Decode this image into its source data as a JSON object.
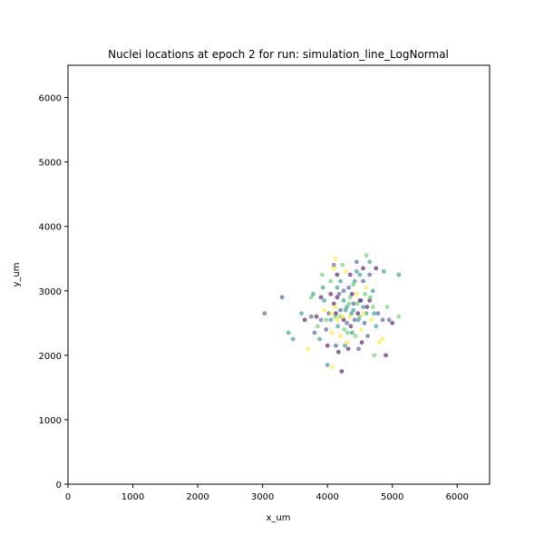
{
  "chart_data": {
    "type": "scatter",
    "title": "Nuclei locations at epoch 2 for run: simulation_line_LogNormal",
    "xlabel": "x_um",
    "ylabel": "y_um",
    "xlim": [
      0,
      6500
    ],
    "ylim": [
      0,
      6500
    ],
    "xticks": [
      0,
      1000,
      2000,
      3000,
      4000,
      5000,
      6000
    ],
    "yticks": [
      0,
      1000,
      2000,
      3000,
      4000,
      5000,
      6000
    ],
    "grid": false,
    "colormap": [
      "#440154",
      "#3b528b",
      "#21918c",
      "#5ec962",
      "#fde725"
    ],
    "point_alpha": 0.6,
    "points": [
      [
        3030,
        2650,
        1
      ],
      [
        3300,
        2900,
        1
      ],
      [
        3400,
        2350,
        2
      ],
      [
        3470,
        2250,
        2
      ],
      [
        3600,
        2650,
        2
      ],
      [
        3650,
        2550,
        0
      ],
      [
        3700,
        2100,
        4
      ],
      [
        3750,
        2600,
        1
      ],
      [
        3780,
        2950,
        2
      ],
      [
        3800,
        2350,
        1
      ],
      [
        3830,
        2600,
        0
      ],
      [
        3850,
        2450,
        3
      ],
      [
        3880,
        2250,
        2
      ],
      [
        3900,
        2900,
        0
      ],
      [
        3900,
        2550,
        1
      ],
      [
        3920,
        3250,
        3
      ],
      [
        3930,
        3050,
        2
      ],
      [
        3950,
        2700,
        4
      ],
      [
        3980,
        2400,
        1
      ],
      [
        4000,
        2150,
        0
      ],
      [
        4000,
        1850,
        2
      ],
      [
        4020,
        2650,
        1
      ],
      [
        4050,
        3150,
        3
      ],
      [
        4050,
        2950,
        0
      ],
      [
        4050,
        2550,
        2
      ],
      [
        4070,
        2350,
        4
      ],
      [
        4080,
        1820,
        4
      ],
      [
        4100,
        3400,
        1
      ],
      [
        4100,
        3350,
        4
      ],
      [
        4100,
        2800,
        0
      ],
      [
        4120,
        3500,
        4
      ],
      [
        4120,
        2600,
        3
      ],
      [
        4130,
        2150,
        1
      ],
      [
        4150,
        3250,
        0
      ],
      [
        4150,
        3050,
        2
      ],
      [
        4150,
        2900,
        0
      ],
      [
        4150,
        2550,
        4
      ],
      [
        4160,
        2450,
        2
      ],
      [
        4170,
        2050,
        0
      ],
      [
        4200,
        3150,
        2
      ],
      [
        4200,
        2700,
        1
      ],
      [
        4200,
        2600,
        3
      ],
      [
        4200,
        2300,
        4
      ],
      [
        4220,
        1750,
        0
      ],
      [
        4230,
        3400,
        3
      ],
      [
        4250,
        3000,
        1
      ],
      [
        4250,
        2850,
        2
      ],
      [
        4250,
        2550,
        0
      ],
      [
        4260,
        2400,
        3
      ],
      [
        4270,
        2150,
        2
      ],
      [
        4280,
        3300,
        4
      ],
      [
        4300,
        2750,
        2
      ],
      [
        4300,
        2500,
        1
      ],
      [
        4300,
        2200,
        4
      ],
      [
        4320,
        2100,
        0
      ],
      [
        4330,
        3050,
        1
      ],
      [
        4350,
        3250,
        0
      ],
      [
        4350,
        2900,
        3
      ],
      [
        4350,
        2600,
        4
      ],
      [
        4360,
        2450,
        0
      ],
      [
        4380,
        2350,
        2
      ],
      [
        4400,
        3100,
        3
      ],
      [
        4400,
        2800,
        1
      ],
      [
        4400,
        2700,
        2
      ],
      [
        4420,
        2550,
        1
      ],
      [
        4430,
        2300,
        3
      ],
      [
        4450,
        3450,
        1
      ],
      [
        4450,
        3300,
        2
      ],
      [
        4450,
        2950,
        4
      ],
      [
        4470,
        2650,
        0
      ],
      [
        4480,
        2100,
        1
      ],
      [
        4500,
        3250,
        2
      ],
      [
        4500,
        2850,
        0
      ],
      [
        4500,
        2600,
        3
      ],
      [
        4520,
        2400,
        4
      ],
      [
        4530,
        2200,
        0
      ],
      [
        4550,
        3350,
        0
      ],
      [
        4550,
        3150,
        1
      ],
      [
        4550,
        2750,
        2
      ],
      [
        4570,
        2500,
        1
      ],
      [
        4580,
        2950,
        3
      ],
      [
        4600,
        3550,
        3
      ],
      [
        4600,
        3050,
        4
      ],
      [
        4600,
        2650,
        2
      ],
      [
        4620,
        2300,
        1
      ],
      [
        4650,
        3450,
        2
      ],
      [
        4650,
        3250,
        1
      ],
      [
        4650,
        2850,
        0
      ],
      [
        4680,
        2550,
        4
      ],
      [
        4700,
        3000,
        2
      ],
      [
        4700,
        2750,
        3
      ],
      [
        4720,
        2000,
        3
      ],
      [
        4750,
        3350,
        0
      ],
      [
        4750,
        2450,
        2
      ],
      [
        4780,
        2650,
        1
      ],
      [
        4800,
        2200,
        4
      ],
      [
        4850,
        2250,
        4
      ],
      [
        4850,
        2550,
        1
      ],
      [
        4870,
        3300,
        2
      ],
      [
        4900,
        2000,
        0
      ],
      [
        4920,
        2750,
        3
      ],
      [
        4950,
        2550,
        1
      ],
      [
        5000,
        2500,
        0
      ],
      [
        5100,
        3250,
        2
      ],
      [
        5100,
        2600,
        3
      ],
      [
        3750,
        2900,
        3
      ],
      [
        3950,
        2850,
        2
      ],
      [
        4120,
        2750,
        4
      ],
      [
        4180,
        2950,
        1
      ],
      [
        4280,
        2700,
        2
      ],
      [
        4330,
        2800,
        3
      ],
      [
        4380,
        2950,
        0
      ],
      [
        4420,
        3150,
        2
      ],
      [
        4460,
        2800,
        3
      ],
      [
        4480,
        2550,
        2
      ],
      [
        4520,
        2850,
        1
      ],
      [
        4560,
        2650,
        4
      ],
      [
        4610,
        2750,
        0
      ],
      [
        4660,
        2900,
        3
      ],
      [
        4720,
        2650,
        2
      ],
      [
        3980,
        2550,
        3
      ],
      [
        4060,
        2650,
        4
      ],
      [
        4130,
        2650,
        0
      ],
      [
        4230,
        2600,
        4
      ],
      [
        4310,
        2350,
        3
      ],
      [
        4370,
        2650,
        2
      ]
    ]
  }
}
